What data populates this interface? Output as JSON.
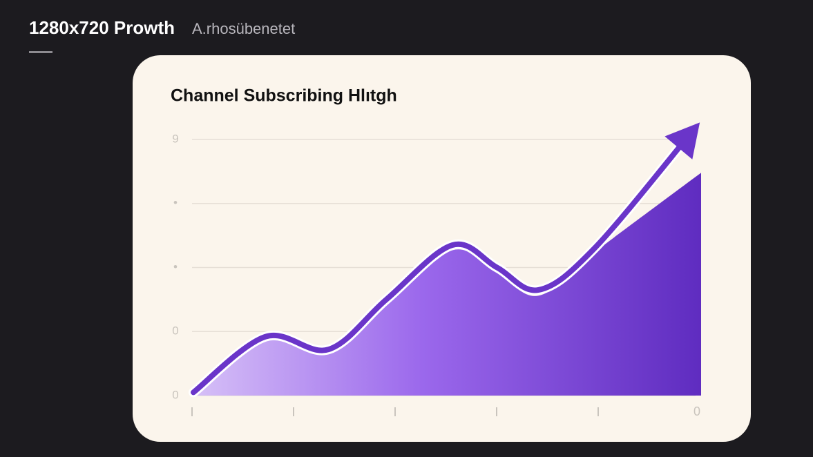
{
  "header": {
    "title": "1280x720 Prowth",
    "subtitle": "A.rhosübenetet"
  },
  "chart_data": {
    "type": "area",
    "title": "Channel Subscribing Hlıtgh",
    "categories": [
      null,
      null,
      null,
      null,
      null,
      "0"
    ],
    "series": [
      {
        "color": "#7b46dc",
        "x": [
          0,
          0.71,
          1.33,
          1.9,
          2.55,
          2.99,
          3.4,
          3.95,
          5
        ],
        "values": [
          0,
          0.87,
          0.66,
          1.43,
          2.27,
          1.92,
          1.56,
          2.24,
          3.48
        ]
      },
      {
        "color": "#6a35c9",
        "x": [
          0,
          0.71,
          1.33,
          1.9,
          2.55,
          2.99,
          3.4,
          3.95,
          4.9
        ],
        "values": [
          0.05,
          0.92,
          0.72,
          1.5,
          2.35,
          2.0,
          1.65,
          2.3,
          4.1
        ]
      }
    ],
    "xlim": [
      0,
      5
    ],
    "ylim": [
      0,
      4
    ],
    "yticks": [
      0,
      {
        "value": 1,
        "label": "0"
      },
      {
        "value": 2,
        "label": "•"
      },
      {
        "value": 3,
        "label": "•"
      },
      {
        "value": 4,
        "label": "9"
      }
    ],
    "grid": true
  }
}
